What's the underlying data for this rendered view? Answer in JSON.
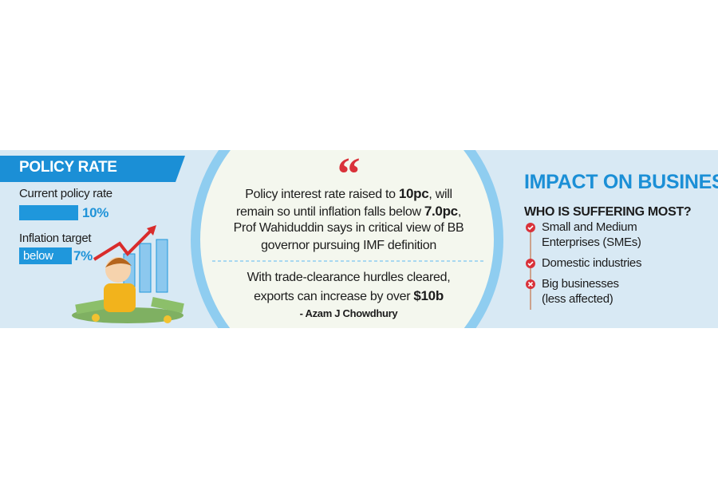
{
  "policy_rate": {
    "title": "POLICY RATE",
    "current_label": "Current policy rate",
    "current_value": "10%",
    "target_label": "Inflation target",
    "target_qualifier": "below",
    "target_value": "7%"
  },
  "quote": {
    "mark": "“",
    "headline_lines": [
      [
        "Policy interest rate raised to ",
        "10pc",
        ", will"
      ],
      [
        "remain so until inflation falls below ",
        "7.0pc",
        ","
      ],
      [
        "Prof Wahiduddin says in critical view of BB"
      ],
      [
        "governor pursuing IMF definition"
      ]
    ],
    "sub_lines": [
      [
        "With trade-clearance hurdles cleared,"
      ],
      [
        "exports can increase by over ",
        "$10b"
      ]
    ],
    "attribution": "- Azam J Chowdhury"
  },
  "impact": {
    "title": "IMPACT ON BUSINESS",
    "subtitle": "WHO IS SUFFERING MOST?",
    "items": [
      [
        "Small and Medium",
        "Enterprises (SMEs)"
      ],
      [
        "Domestic industries"
      ],
      [
        "Big businesses",
        "(less affected)"
      ]
    ]
  }
}
